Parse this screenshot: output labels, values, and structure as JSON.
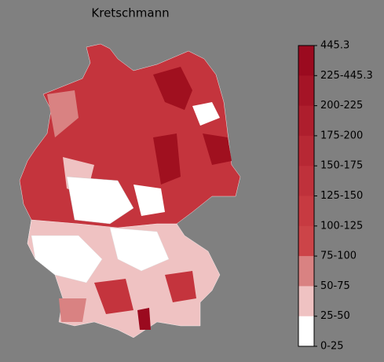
{
  "title": "Kretschmann",
  "colorbar": {
    "labels": [
      "445.3",
      "225-445.3",
      "200-225",
      "175-200",
      "150-175",
      "125-150",
      "100-125",
      "75-100",
      "50-75",
      "25-50",
      "0-25"
    ],
    "colors": [
      "#9b0a1f",
      "#a51426",
      "#ae1e2d",
      "#b72834",
      "#bf313b",
      "#c73a41",
      "#cc4448",
      "#d98282",
      "#efc2c2",
      "#ffffff"
    ]
  }
}
